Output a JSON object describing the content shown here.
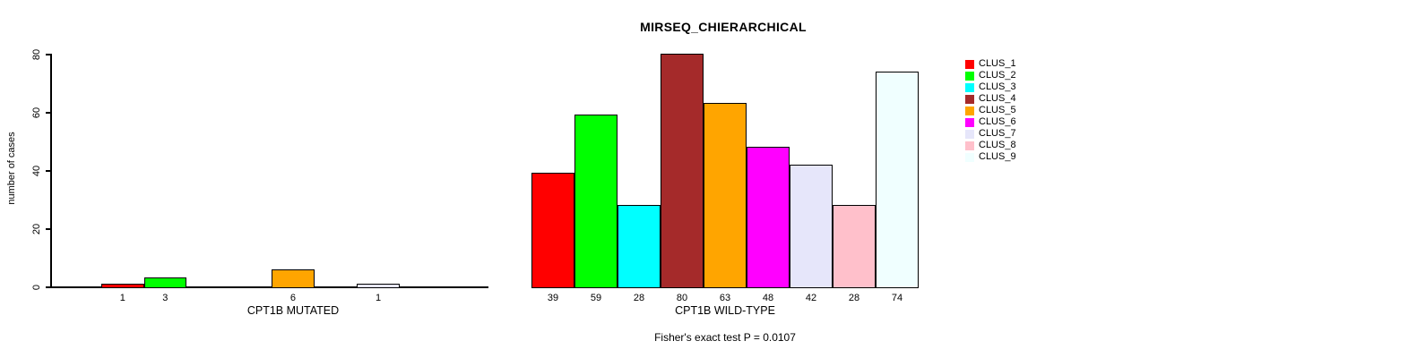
{
  "chart_data": {
    "type": "bar",
    "title": "MIRSEQ_CHIERARCHICAL",
    "ylabel": "number of cases",
    "ylim": [
      0,
      80
    ],
    "yticks": [
      0,
      20,
      40,
      60,
      80
    ],
    "grid": false,
    "legend_position": "right",
    "background_color": "#FFFFFF",
    "bar_border_color": "#000000",
    "clusters": [
      "CLUS_1",
      "CLUS_2",
      "CLUS_3",
      "CLUS_4",
      "CLUS_5",
      "CLUS_6",
      "CLUS_7",
      "CLUS_8",
      "CLUS_9"
    ],
    "cluster_colors": [
      "#FF0000",
      "#00FF00",
      "#00FFFF",
      "#A52A2A",
      "#FFA500",
      "#FF00FF",
      "#E6E6FA",
      "#FFC0CB",
      "#F0FFFF"
    ],
    "groups": [
      {
        "label": "CPT1B MUTATED",
        "values": [
          1,
          3,
          0,
          0,
          6,
          0,
          1,
          0,
          0
        ]
      },
      {
        "label": "CPT1B WILD-TYPE",
        "values": [
          39,
          59,
          28,
          80,
          63,
          48,
          42,
          28,
          74
        ]
      }
    ],
    "annotation": "Fisher's exact test P = 0.0107"
  }
}
